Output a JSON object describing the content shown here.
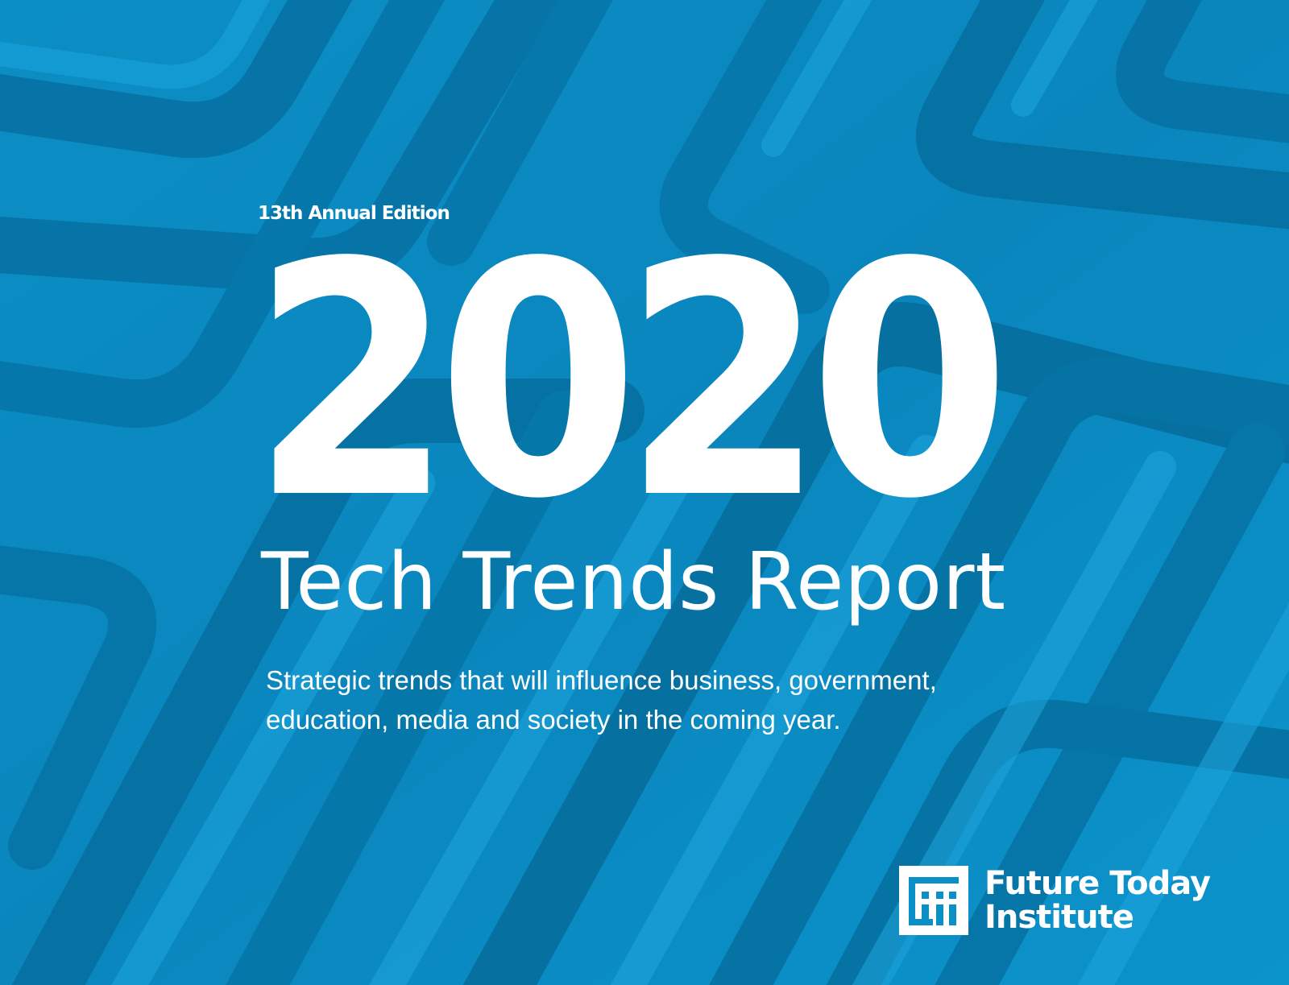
{
  "cover": {
    "edition": "13th Annual Edition",
    "year": "2020",
    "title": "Tech Trends Report",
    "subtitle_lines": [
      "Strategic trends that will influence business, government,",
      "education, media and society in the coming year."
    ],
    "publisher_lines": [
      "Future Today",
      "Institute"
    ],
    "logo_icon": "future-today-institute-logo-icon"
  },
  "colors": {
    "background": "#0a8fc6",
    "groove_dark": "#066b99",
    "groove_light": "#1aa3db",
    "text": "#ffffff"
  }
}
